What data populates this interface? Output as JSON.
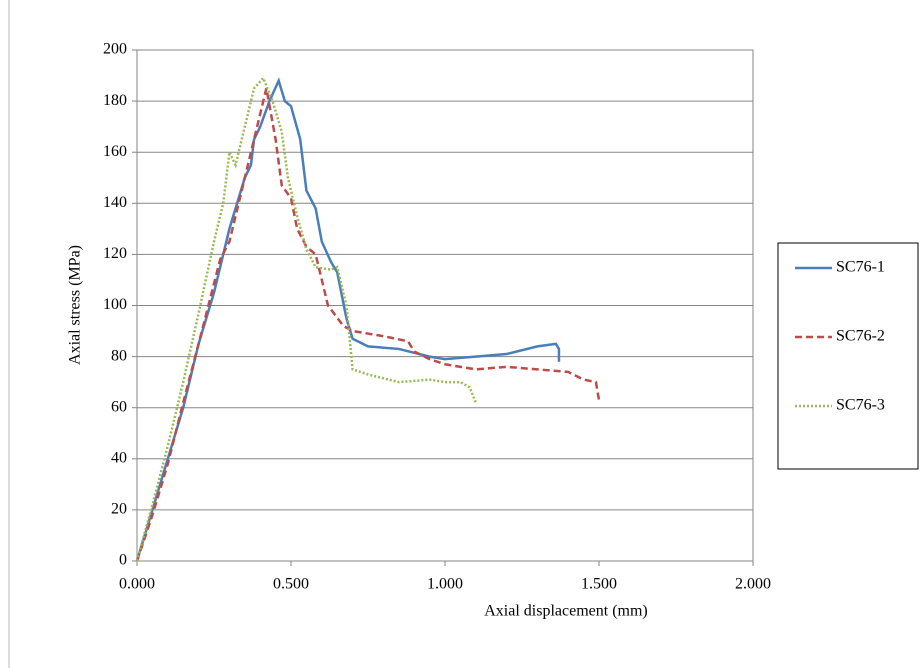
{
  "chart_data": {
    "type": "line",
    "xlabel": "Axial displacement  (mm)",
    "ylabel": "Axial stress (MPa)",
    "xlim": [
      0,
      2
    ],
    "ylim": [
      0,
      200
    ],
    "xticks": [
      {
        "value": 0,
        "label": "0.000"
      },
      {
        "value": 0.5,
        "label": "0.500"
      },
      {
        "value": 1,
        "label": "1.000"
      },
      {
        "value": 1.5,
        "label": "1.500"
      },
      {
        "value": 2,
        "label": "2.000"
      }
    ],
    "yticks": [
      0,
      20,
      40,
      60,
      80,
      100,
      120,
      140,
      160,
      180,
      200
    ],
    "grid": true,
    "legend": "right",
    "series": [
      {
        "name": "SC76-1",
        "color": "#4a7ebb",
        "dash": "solid",
        "x": [
          0,
          0.05,
          0.1,
          0.15,
          0.2,
          0.25,
          0.3,
          0.35,
          0.37,
          0.38,
          0.4,
          0.43,
          0.46,
          0.48,
          0.5,
          0.53,
          0.55,
          0.58,
          0.6,
          0.63,
          0.65,
          0.68,
          0.7,
          0.75,
          0.85,
          0.95,
          1.0,
          1.1,
          1.2,
          1.3,
          1.36,
          1.37,
          1.37
        ],
        "values": [
          0,
          20,
          40,
          60,
          85,
          105,
          130,
          150,
          155,
          165,
          170,
          180,
          188,
          180,
          178,
          165,
          145,
          138,
          125,
          117,
          113,
          95,
          87,
          84,
          83,
          80,
          79,
          80,
          81,
          84,
          85,
          83,
          78
        ]
      },
      {
        "name": "SC76-2",
        "color": "#be4b48",
        "dash": "dashed",
        "x": [
          0,
          0.05,
          0.1,
          0.15,
          0.2,
          0.27,
          0.3,
          0.35,
          0.4,
          0.42,
          0.45,
          0.47,
          0.5,
          0.52,
          0.55,
          0.58,
          0.62,
          0.67,
          0.7,
          0.8,
          0.88,
          0.9,
          0.95,
          1.0,
          1.1,
          1.2,
          1.3,
          1.4,
          1.45,
          1.49,
          1.5
        ],
        "values": [
          0,
          18,
          38,
          62,
          85,
          118,
          125,
          150,
          175,
          185,
          165,
          147,
          142,
          130,
          123,
          120,
          100,
          92,
          90,
          88,
          86,
          82,
          79,
          77,
          75,
          76,
          75,
          74,
          71,
          70,
          63
        ]
      },
      {
        "name": "SC76-3",
        "color": "#98b954",
        "dash": "dotted",
        "x": [
          0,
          0.05,
          0.1,
          0.15,
          0.2,
          0.25,
          0.28,
          0.3,
          0.32,
          0.35,
          0.38,
          0.41,
          0.44,
          0.47,
          0.49,
          0.52,
          0.55,
          0.58,
          0.63,
          0.65,
          0.68,
          0.7,
          0.75,
          0.85,
          0.95,
          1.0,
          1.05,
          1.08,
          1.1
        ],
        "values": [
          0,
          22,
          45,
          70,
          97,
          125,
          140,
          160,
          155,
          170,
          185,
          189,
          180,
          168,
          150,
          135,
          122,
          115,
          114,
          115,
          100,
          75,
          73,
          70,
          71,
          70,
          70,
          68,
          62
        ]
      }
    ]
  }
}
